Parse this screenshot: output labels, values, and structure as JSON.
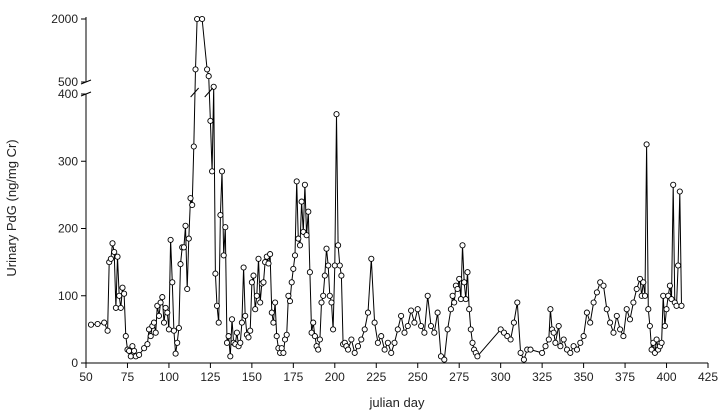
{
  "chart_data": {
    "type": "line",
    "xlabel": "julian day",
    "ylabel": "Urinary PdG (ng/mg Cr)",
    "xlim": [
      50,
      425
    ],
    "xticks": [
      50,
      75,
      100,
      125,
      150,
      175,
      200,
      225,
      250,
      275,
      300,
      325,
      350,
      375,
      400,
      425
    ],
    "ylim_lower": [
      0,
      400
    ],
    "yticks_lower": [
      0,
      100,
      200,
      300,
      400
    ],
    "ylim_upper": [
      500,
      2000
    ],
    "yticks_upper": [
      500,
      2000
    ],
    "axis_break": true,
    "grid": false,
    "marker": "open-circle",
    "line_color": "#000000",
    "series": [
      {
        "points": [
          [
            53,
            57
          ],
          [
            57,
            58
          ],
          [
            61,
            60
          ],
          [
            63,
            48
          ],
          [
            64,
            150
          ],
          [
            65,
            155
          ],
          [
            66,
            178
          ],
          [
            67,
            165
          ],
          [
            68,
            82
          ],
          [
            69,
            158
          ],
          [
            70,
            100
          ],
          [
            71,
            82
          ],
          [
            72,
            112
          ],
          [
            73,
            103
          ],
          [
            74,
            40
          ],
          [
            75,
            20
          ],
          [
            76,
            18
          ],
          [
            77,
            10
          ],
          [
            78,
            25
          ],
          [
            79,
            18
          ],
          [
            80,
            10
          ],
          [
            82,
            12
          ],
          [
            85,
            22
          ],
          [
            87,
            28
          ],
          [
            88,
            50
          ],
          [
            89,
            40
          ],
          [
            90,
            55
          ],
          [
            91,
            60
          ],
          [
            92,
            45
          ],
          [
            93,
            85
          ],
          [
            94,
            70
          ],
          [
            95,
            90
          ],
          [
            96,
            98
          ],
          [
            97,
            60
          ],
          [
            98,
            82
          ],
          [
            99,
            75
          ],
          [
            100,
            50
          ],
          [
            101,
            183
          ],
          [
            102,
            120
          ],
          [
            103,
            48
          ],
          [
            104,
            14
          ],
          [
            105,
            30
          ],
          [
            106,
            52
          ],
          [
            107,
            147
          ],
          [
            108,
            172
          ],
          [
            109,
            172
          ],
          [
            110,
            204
          ],
          [
            111,
            110
          ],
          [
            112,
            185
          ],
          [
            113,
            245
          ],
          [
            114,
            235
          ],
          [
            115,
            322
          ],
          [
            116,
            800
          ],
          [
            117,
            2000
          ],
          [
            120,
            2000
          ],
          [
            123,
            800
          ],
          [
            124,
            640
          ],
          [
            125,
            360
          ],
          [
            126,
            285
          ],
          [
            127,
            460
          ],
          [
            128,
            133
          ],
          [
            129,
            85
          ],
          [
            130,
            60
          ],
          [
            131,
            220
          ],
          [
            132,
            285
          ],
          [
            133,
            160
          ],
          [
            134,
            202
          ],
          [
            135,
            30
          ],
          [
            136,
            40
          ],
          [
            137,
            10
          ],
          [
            138,
            65
          ],
          [
            139,
            30
          ],
          [
            140,
            28
          ],
          [
            141,
            45
          ],
          [
            142,
            25
          ],
          [
            143,
            30
          ],
          [
            144,
            60
          ],
          [
            145,
            142
          ],
          [
            146,
            70
          ],
          [
            147,
            42
          ],
          [
            148,
            38
          ],
          [
            149,
            48
          ],
          [
            150,
            120
          ],
          [
            151,
            130
          ],
          [
            152,
            80
          ],
          [
            153,
            100
          ],
          [
            154,
            155
          ],
          [
            155,
            90
          ],
          [
            156,
            118
          ],
          [
            157,
            120
          ],
          [
            158,
            150
          ],
          [
            159,
            158
          ],
          [
            160,
            148
          ],
          [
            161,
            162
          ],
          [
            162,
            75
          ],
          [
            163,
            60
          ],
          [
            164,
            90
          ],
          [
            165,
            40
          ],
          [
            166,
            22
          ],
          [
            167,
            15
          ],
          [
            168,
            22
          ],
          [
            169,
            15
          ],
          [
            170,
            35
          ],
          [
            171,
            42
          ],
          [
            172,
            100
          ],
          [
            173,
            92
          ],
          [
            174,
            120
          ],
          [
            175,
            140
          ],
          [
            176,
            160
          ],
          [
            177,
            270
          ],
          [
            178,
            185
          ],
          [
            179,
            175
          ],
          [
            180,
            240
          ],
          [
            181,
            195
          ],
          [
            182,
            265
          ],
          [
            183,
            190
          ],
          [
            184,
            225
          ],
          [
            185,
            135
          ],
          [
            186,
            45
          ],
          [
            187,
            60
          ],
          [
            188,
            40
          ],
          [
            189,
            25
          ],
          [
            190,
            20
          ],
          [
            191,
            35
          ],
          [
            192,
            90
          ],
          [
            193,
            100
          ],
          [
            194,
            130
          ],
          [
            195,
            170
          ],
          [
            196,
            145
          ],
          [
            197,
            100
          ],
          [
            198,
            90
          ],
          [
            199,
            50
          ],
          [
            200,
            145
          ],
          [
            201,
            370
          ],
          [
            202,
            175
          ],
          [
            203,
            145
          ],
          [
            204,
            130
          ],
          [
            205,
            28
          ],
          [
            206,
            30
          ],
          [
            207,
            25
          ],
          [
            208,
            20
          ],
          [
            210,
            35
          ],
          [
            212,
            15
          ],
          [
            214,
            25
          ],
          [
            216,
            35
          ],
          [
            218,
            50
          ],
          [
            220,
            75
          ],
          [
            222,
            155
          ],
          [
            224,
            60
          ],
          [
            226,
            30
          ],
          [
            228,
            40
          ],
          [
            230,
            20
          ],
          [
            232,
            30
          ],
          [
            234,
            15
          ],
          [
            236,
            30
          ],
          [
            238,
            50
          ],
          [
            240,
            70
          ],
          [
            242,
            45
          ],
          [
            244,
            55
          ],
          [
            246,
            78
          ],
          [
            248,
            60
          ],
          [
            250,
            80
          ],
          [
            252,
            55
          ],
          [
            254,
            45
          ],
          [
            256,
            100
          ],
          [
            258,
            55
          ],
          [
            260,
            45
          ],
          [
            262,
            75
          ],
          [
            264,
            10
          ],
          [
            266,
            5
          ],
          [
            268,
            50
          ],
          [
            270,
            80
          ],
          [
            271,
            100
          ],
          [
            272,
            90
          ],
          [
            273,
            115
          ],
          [
            274,
            110
          ],
          [
            275,
            125
          ],
          [
            276,
            95
          ],
          [
            277,
            175
          ],
          [
            278,
            120
          ],
          [
            279,
            95
          ],
          [
            280,
            135
          ],
          [
            281,
            80
          ],
          [
            282,
            50
          ],
          [
            283,
            30
          ],
          [
            284,
            20
          ],
          [
            285,
            15
          ],
          [
            286,
            10
          ],
          [
            300,
            50
          ],
          [
            302,
            45
          ],
          [
            304,
            40
          ],
          [
            306,
            35
          ],
          [
            308,
            60
          ],
          [
            310,
            90
          ],
          [
            312,
            15
          ],
          [
            314,
            5
          ],
          [
            316,
            20
          ],
          [
            318,
            20
          ],
          [
            325,
            15
          ],
          [
            327,
            25
          ],
          [
            329,
            35
          ],
          [
            330,
            80
          ],
          [
            331,
            50
          ],
          [
            332,
            45
          ],
          [
            333,
            30
          ],
          [
            335,
            55
          ],
          [
            336,
            25
          ],
          [
            338,
            35
          ],
          [
            340,
            20
          ],
          [
            342,
            15
          ],
          [
            344,
            25
          ],
          [
            346,
            20
          ],
          [
            348,
            30
          ],
          [
            350,
            40
          ],
          [
            352,
            75
          ],
          [
            354,
            60
          ],
          [
            356,
            90
          ],
          [
            358,
            105
          ],
          [
            360,
            120
          ],
          [
            362,
            115
          ],
          [
            364,
            80
          ],
          [
            366,
            60
          ],
          [
            368,
            45
          ],
          [
            370,
            70
          ],
          [
            372,
            50
          ],
          [
            374,
            40
          ],
          [
            376,
            80
          ],
          [
            378,
            65
          ],
          [
            380,
            90
          ],
          [
            382,
            110
          ],
          [
            384,
            125
          ],
          [
            385,
            100
          ],
          [
            386,
            120
          ],
          [
            387,
            100
          ],
          [
            388,
            325
          ],
          [
            389,
            80
          ],
          [
            390,
            55
          ],
          [
            391,
            20
          ],
          [
            392,
            30
          ],
          [
            393,
            15
          ],
          [
            394,
            35
          ],
          [
            395,
            20
          ],
          [
            396,
            25
          ],
          [
            397,
            30
          ],
          [
            398,
            100
          ],
          [
            399,
            55
          ],
          [
            400,
            80
          ],
          [
            401,
            100
          ],
          [
            402,
            115
          ],
          [
            403,
            95
          ],
          [
            404,
            265
          ],
          [
            405,
            90
          ],
          [
            406,
            85
          ],
          [
            407,
            145
          ],
          [
            408,
            255
          ],
          [
            409,
            85
          ]
        ]
      }
    ]
  }
}
